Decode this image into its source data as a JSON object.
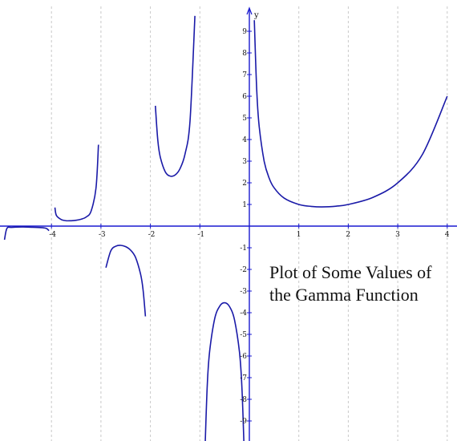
{
  "chart_data": {
    "type": "line",
    "title": "",
    "xlabel": "",
    "ylabel": "y",
    "annotation": "Plot of Some Values of\nthe Gamma Function",
    "xlim": [
      -5,
      4.05
    ],
    "ylim": [
      -9.5,
      10.2
    ],
    "grid": {
      "vertical": true,
      "horizontal": false
    },
    "x_ticks": [
      -4,
      -3,
      -2,
      -1,
      1,
      2,
      3,
      4
    ],
    "x_tick_labels": [
      "-4",
      "-3",
      "-2",
      "-1",
      "1",
      "2",
      "3",
      "4"
    ],
    "y_ticks": [
      -9,
      -8,
      -7,
      -6,
      -5,
      -4,
      -3,
      -2,
      -1,
      1,
      2,
      3,
      4,
      5,
      6,
      7,
      8,
      9
    ],
    "y_tick_labels": [
      "-9",
      "-8",
      "-7",
      "-6",
      "-5",
      "-4",
      "-3",
      "-2",
      "-1",
      "1",
      "2",
      "3",
      "4",
      "5",
      "6",
      "7",
      "8",
      "9"
    ],
    "series": [
      {
        "x": [
          0.1,
          0.15,
          0.2,
          0.3,
          0.4,
          0.5,
          0.7,
          1.0,
          1.25,
          1.46,
          1.75,
          2.0,
          2.5,
          3.0,
          3.5,
          4.0
        ],
        "y": [
          9.51,
          6.22,
          4.59,
          2.99,
          2.22,
          1.77,
          1.3,
          1.0,
          0.91,
          0.886,
          0.92,
          1.0,
          1.33,
          2.0,
          3.32,
          6.0
        ]
      },
      {
        "x": [
          -0.9,
          -0.85,
          -0.8,
          -0.7,
          -0.6,
          -0.5,
          -0.4,
          -0.3,
          -0.2,
          -0.15,
          -0.1
        ],
        "y": [
          -10.57,
          -7.29,
          -5.74,
          -4.27,
          -3.7,
          -3.54,
          -3.72,
          -4.33,
          -5.82,
          -7.44,
          -10.69
        ]
      },
      {
        "x": [
          -1.9,
          -1.85,
          -1.8,
          -1.7,
          -1.6,
          -1.5,
          -1.4,
          -1.3,
          -1.2,
          -1.1
        ],
        "y": [
          5.56,
          3.94,
          3.19,
          2.51,
          2.31,
          2.36,
          2.66,
          3.33,
          4.85,
          9.71
        ]
      },
      {
        "x": [
          -2.9,
          -2.8,
          -2.7,
          -2.6,
          -2.5,
          -2.4,
          -2.3,
          -2.2,
          -2.15,
          -2.1
        ],
        "y": [
          -1.92,
          -1.14,
          -0.93,
          -0.89,
          -0.95,
          -1.11,
          -1.45,
          -2.21,
          -2.9,
          -4.17
        ]
      },
      {
        "x": [
          -3.93,
          -3.9,
          -3.8,
          -3.7,
          -3.6,
          -3.5,
          -3.4,
          -3.3,
          -3.2,
          -3.1,
          -3.05
        ],
        "y": [
          0.86,
          0.49,
          0.3,
          0.25,
          0.25,
          0.27,
          0.32,
          0.42,
          0.69,
          1.75,
          3.76
        ]
      },
      {
        "x": [
          -4.95,
          -4.9,
          -4.8,
          -4.6,
          -4.4,
          -4.2,
          -4.1,
          -4.05
        ],
        "y": [
          -0.63,
          -0.1,
          -0.06,
          -0.04,
          -0.05,
          -0.07,
          -0.11,
          -0.21
        ]
      }
    ]
  }
}
